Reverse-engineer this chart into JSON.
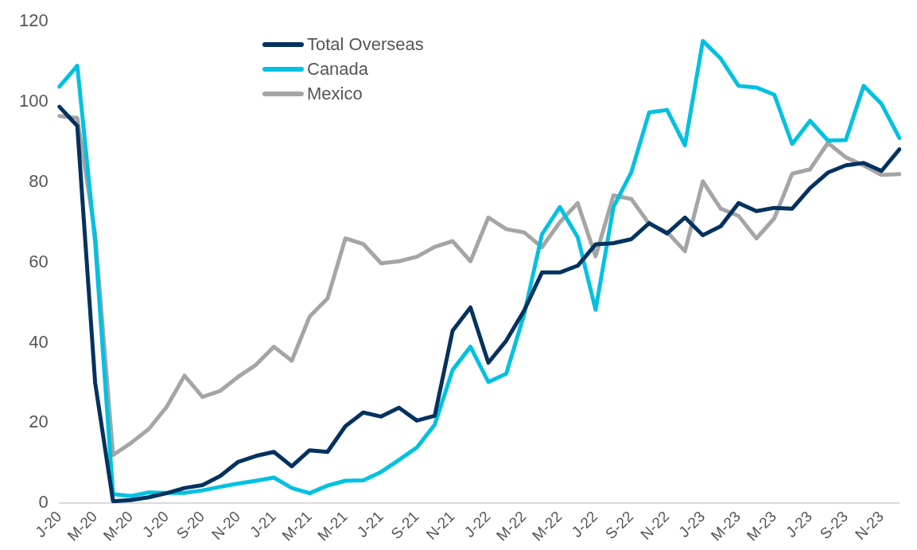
{
  "chart_data": {
    "type": "line",
    "categories": [
      "J-20",
      null,
      "M-20",
      null,
      "M-20",
      null,
      "J-20",
      null,
      "S-20",
      null,
      "N-20",
      null,
      "J-21",
      null,
      "M-21",
      null,
      "M-21",
      null,
      "J-21",
      null,
      "S-21",
      null,
      "N-21",
      null,
      "J-22",
      null,
      "M-22",
      null,
      "M-22",
      null,
      "J-22",
      null,
      "S-22",
      null,
      "N-22",
      null,
      "J-23",
      null,
      "M-23",
      null,
      "M-23",
      null,
      "J-23",
      null,
      "S-23",
      null,
      "N-23",
      null
    ],
    "series": [
      {
        "name": "Total Overseas",
        "color": "#04325f",
        "values": [
          98.8,
          94,
          30,
          0.5,
          0.8,
          1.5,
          2.5,
          3.8,
          4.5,
          6.8,
          10.3,
          11.8,
          12.8,
          9.2,
          13.2,
          12.8,
          19.2,
          22.6,
          21.6,
          23.8,
          20.6,
          21.8,
          43,
          48.8,
          35,
          40.5,
          48,
          57.5,
          57.5,
          59.2,
          64.5,
          64.8,
          65.8,
          69.8,
          67.2,
          71.2,
          66.8,
          69,
          74.8,
          72.8,
          73.6,
          73.4,
          78.5,
          82.4,
          84.2,
          84.8,
          82.8,
          88.2
        ]
      },
      {
        "name": "Canada",
        "color": "#00c1e2",
        "values": [
          103.8,
          109,
          65,
          2.3,
          1.8,
          2.7,
          2.6,
          2.6,
          3.2,
          4.1,
          4.9,
          5.6,
          6.4,
          3.8,
          2.5,
          4.4,
          5.6,
          5.7,
          7.8,
          10.8,
          13.9,
          19.6,
          33.2,
          39,
          30.2,
          32.3,
          47,
          67,
          73.8,
          66.3,
          48.2,
          73.8,
          82.5,
          97.4,
          98,
          89.2,
          115.2,
          110.8,
          104,
          103.6,
          101.8,
          89.5,
          95.3,
          90.4,
          90.5,
          104,
          99.5,
          91
        ]
      },
      {
        "name": "Mexico",
        "color": "#a5a5a5",
        "values": [
          96.5,
          96,
          67,
          12,
          15,
          18.5,
          24,
          31.8,
          26.5,
          28,
          31.5,
          34.5,
          39,
          35.5,
          46.5,
          51,
          66,
          64.6,
          59.8,
          60.3,
          61.4,
          63.9,
          65.3,
          60.3,
          71.2,
          68.3,
          67.5,
          63.8,
          70,
          74.8,
          61.5,
          76.7,
          75.8,
          69.6,
          67.6,
          62.8,
          80.2,
          73.4,
          71.6,
          66,
          71,
          82.1,
          83.2,
          89.8,
          86.2,
          84.2,
          81.8,
          82
        ]
      }
    ],
    "ylim": [
      0,
      120
    ],
    "yticks": [
      0,
      20,
      40,
      60,
      80,
      100,
      120
    ],
    "grid": false,
    "legend": "top",
    "marker": "none",
    "line_style": "solid"
  }
}
